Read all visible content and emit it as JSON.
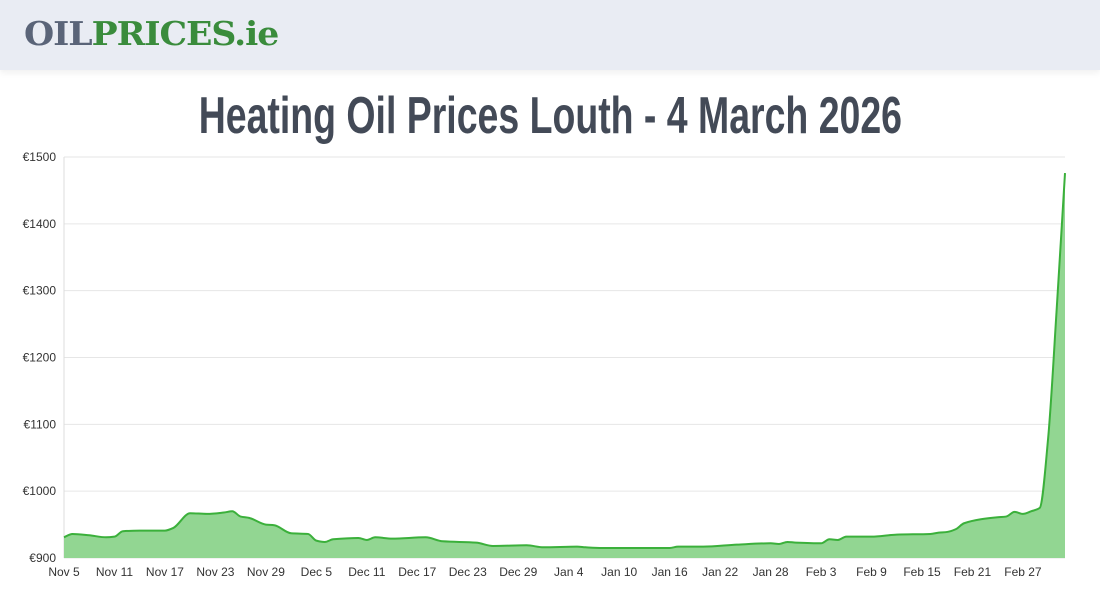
{
  "header": {
    "logo_part1": "OIL",
    "logo_part2": "PRICES.ie"
  },
  "title": "Heating Oil Prices Louth - 4 March 2026",
  "colors": {
    "line": "#3bb03b",
    "fill": "#92d692",
    "grid": "#e6e6e6",
    "logo_gray": "#5a6478",
    "logo_green": "#3a8c3c"
  },
  "chart_data": {
    "type": "area",
    "title": "Heating Oil Prices Louth - 4 March 2026",
    "xlabel": "",
    "ylabel": "",
    "ylim": [
      900,
      1500
    ],
    "yticks": [
      "€900",
      "€1000",
      "€1100",
      "€1200",
      "€1300",
      "€1400",
      "€1500"
    ],
    "xticks": [
      "Nov 5",
      "Nov 11",
      "Nov 17",
      "Nov 23",
      "Nov 29",
      "Dec 5",
      "Dec 11",
      "Dec 17",
      "Dec 23",
      "Dec 29",
      "Jan 4",
      "Jan 10",
      "Jan 16",
      "Jan 22",
      "Jan 28",
      "Feb 3",
      "Feb 9",
      "Feb 15",
      "Feb 21",
      "Feb 27"
    ],
    "grid": true,
    "legend": "none",
    "points": [
      [
        "2025-11-05",
        931
      ],
      [
        "2025-11-06",
        936
      ],
      [
        "2025-11-08",
        934
      ],
      [
        "2025-11-10",
        931
      ],
      [
        "2025-11-11",
        932
      ],
      [
        "2025-11-12",
        940
      ],
      [
        "2025-11-14",
        941
      ],
      [
        "2025-11-17",
        941
      ],
      [
        "2025-11-18",
        945
      ],
      [
        "2025-11-20",
        967
      ],
      [
        "2025-11-22",
        966
      ],
      [
        "2025-11-24",
        968
      ],
      [
        "2025-11-25",
        970
      ],
      [
        "2025-11-26",
        962
      ],
      [
        "2025-11-27",
        960
      ],
      [
        "2025-11-29",
        950
      ],
      [
        "2025-11-30",
        949
      ],
      [
        "2025-12-02",
        937
      ],
      [
        "2025-12-04",
        936
      ],
      [
        "2025-12-05",
        926
      ],
      [
        "2025-12-06",
        924
      ],
      [
        "2025-12-07",
        928
      ],
      [
        "2025-12-10",
        930
      ],
      [
        "2025-12-11",
        927
      ],
      [
        "2025-12-12",
        931
      ],
      [
        "2025-12-14",
        929
      ],
      [
        "2025-12-18",
        931
      ],
      [
        "2025-12-20",
        925
      ],
      [
        "2025-12-24",
        923
      ],
      [
        "2025-12-26",
        918
      ],
      [
        "2025-12-30",
        919
      ],
      [
        "2026-01-01",
        916
      ],
      [
        "2026-01-05",
        917
      ],
      [
        "2026-01-06",
        916
      ],
      [
        "2026-01-08",
        915
      ],
      [
        "2026-01-16",
        915
      ],
      [
        "2026-01-17",
        917
      ],
      [
        "2026-01-20",
        917
      ],
      [
        "2026-01-24",
        920
      ],
      [
        "2026-01-28",
        922
      ],
      [
        "2026-01-29",
        921
      ],
      [
        "2026-01-30",
        924
      ],
      [
        "2026-01-31",
        923
      ],
      [
        "2026-02-03",
        922
      ],
      [
        "2026-02-04",
        928
      ],
      [
        "2026-02-05",
        927
      ],
      [
        "2026-02-06",
        932
      ],
      [
        "2026-02-09",
        932
      ],
      [
        "2026-02-12",
        935
      ],
      [
        "2026-02-16",
        936
      ],
      [
        "2026-02-17",
        938
      ],
      [
        "2026-02-18",
        939
      ],
      [
        "2026-02-19",
        943
      ],
      [
        "2026-02-20",
        952
      ],
      [
        "2026-02-22",
        958
      ],
      [
        "2026-02-24",
        961
      ],
      [
        "2026-02-25",
        962
      ],
      [
        "2026-02-26",
        969
      ],
      [
        "2026-02-27",
        966
      ],
      [
        "2026-02-28",
        970
      ],
      [
        "2026-03-01",
        975
      ],
      [
        "2026-03-02",
        1080
      ],
      [
        "2026-03-03",
        1270
      ],
      [
        "2026-03-04",
        1476
      ]
    ]
  }
}
